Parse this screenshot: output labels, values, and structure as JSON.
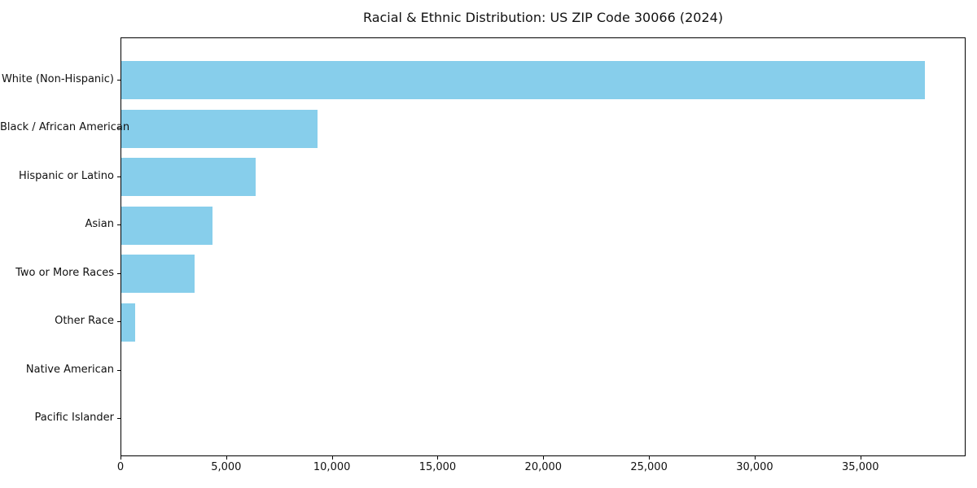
{
  "chart_data": {
    "type": "bar",
    "orientation": "horizontal",
    "title": "Racial & Ethnic Distribution: US ZIP Code 30066 (2024)",
    "categories": [
      "White (Non-Hispanic)",
      "Black / African American",
      "Hispanic or Latino",
      "Asian",
      "Two or More Races",
      "Other Race",
      "Native American",
      "Pacific Islander"
    ],
    "values": [
      38000,
      9300,
      6350,
      4300,
      3450,
      650,
      0,
      0
    ],
    "xlabel": "",
    "ylabel": "",
    "xlim": [
      0,
      39900
    ],
    "x_ticks": [
      0,
      5000,
      10000,
      15000,
      20000,
      25000,
      30000,
      35000
    ],
    "x_tick_labels": [
      "0",
      "5,000",
      "10,000",
      "15,000",
      "20,000",
      "25,000",
      "30,000",
      "35,000"
    ],
    "bar_color": "#87CEEB",
    "background_color": "#ffffff",
    "grid": false,
    "legend": null
  }
}
